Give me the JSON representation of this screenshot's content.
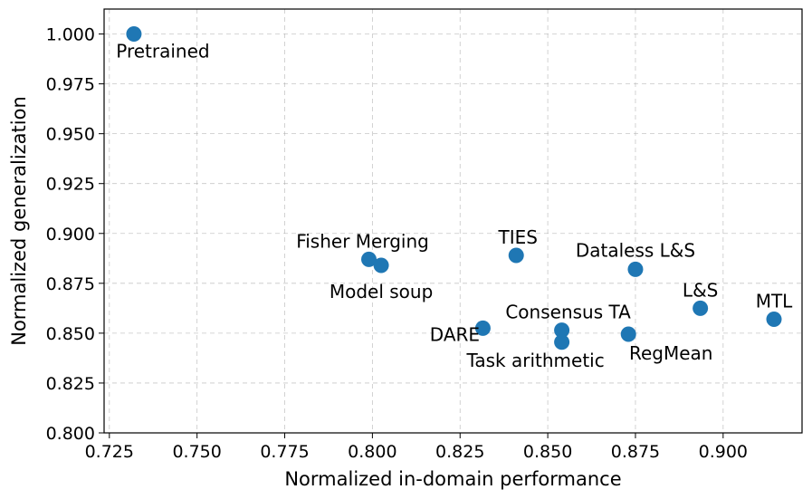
{
  "chart_data": {
    "type": "scatter",
    "title": "",
    "xlabel": "Normalized in-domain performance",
    "ylabel": "Normalized generalization",
    "xlim": [
      0.7235,
      0.9225
    ],
    "ylim": [
      0.8,
      1.0125
    ],
    "xticks": [
      0.725,
      0.75,
      0.775,
      0.8,
      0.825,
      0.85,
      0.875,
      0.9
    ],
    "xtick_labels": [
      "0.725",
      "0.750",
      "0.775",
      "0.800",
      "0.825",
      "0.850",
      "0.875",
      "0.900"
    ],
    "yticks": [
      0.8,
      0.825,
      0.85,
      0.875,
      0.9,
      0.925,
      0.95,
      0.975,
      1.0
    ],
    "ytick_labels": [
      "0.800",
      "0.825",
      "0.850",
      "0.875",
      "0.900",
      "0.925",
      "0.950",
      "0.975",
      "1.000"
    ],
    "grid": true,
    "point_color": "#1f77b4",
    "points": [
      {
        "label": "Pretrained",
        "x": 0.732,
        "y": 1.0,
        "label_pos": "below"
      },
      {
        "label": "Fisher Merging",
        "x": 0.799,
        "y": 0.887,
        "label_pos": "above-left"
      },
      {
        "label": "Model soup",
        "x": 0.8025,
        "y": 0.884,
        "label_pos": "below-right"
      },
      {
        "label": "TIES",
        "x": 0.841,
        "y": 0.889,
        "label_pos": "above"
      },
      {
        "label": "Dataless L&S",
        "x": 0.875,
        "y": 0.882,
        "label_pos": "above-left"
      },
      {
        "label": "L&S",
        "x": 0.8935,
        "y": 0.8625,
        "label_pos": "above"
      },
      {
        "label": "MTL",
        "x": 0.9145,
        "y": 0.857,
        "label_pos": "above"
      },
      {
        "label": "Consensus TA",
        "x": 0.854,
        "y": 0.8515,
        "label_pos": "above"
      },
      {
        "label": "Task arithmetic",
        "x": 0.854,
        "y": 0.8455,
        "label_pos": "below"
      },
      {
        "label": "DARE",
        "x": 0.8315,
        "y": 0.8525,
        "label_pos": "below-left"
      },
      {
        "label": "RegMean",
        "x": 0.873,
        "y": 0.8495,
        "label_pos": "below-right"
      }
    ]
  }
}
